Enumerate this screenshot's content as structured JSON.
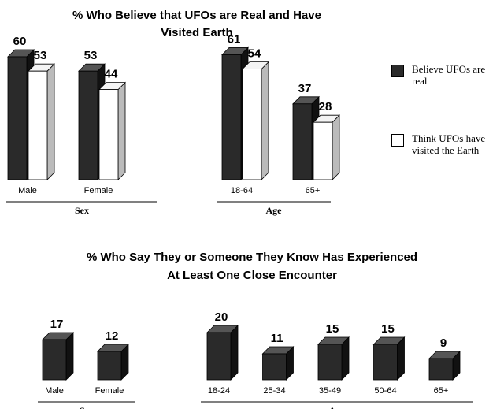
{
  "chart_data": [
    {
      "type": "bar",
      "title": [
        "% Who Believe that UFOs are Real and Have",
        "Visited Earth"
      ],
      "series": [
        {
          "name": "Believe UFOs are real",
          "color": "#2a2a2a"
        },
        {
          "name": "Think UFOs have visited the Earth",
          "color": "#ffffff"
        }
      ],
      "panels": [
        {
          "xlabel": "Sex",
          "categories": [
            "Male",
            "Female"
          ],
          "series": [
            {
              "values": [
                60,
                53
              ]
            },
            {
              "values": [
                53,
                44
              ]
            }
          ]
        },
        {
          "xlabel": "Age",
          "categories": [
            "18-64",
            "65+"
          ],
          "series": [
            {
              "values": [
                61,
                37
              ]
            },
            {
              "values": [
                54,
                28
              ]
            }
          ]
        }
      ]
    },
    {
      "type": "bar",
      "title": [
        "% Who Say They or Someone They Know Has Experienced",
        "At Least One Close Encounter"
      ],
      "series": [
        {
          "color": "#2a2a2a"
        }
      ],
      "panels": [
        {
          "xlabel": "Sex",
          "categories": [
            "Male",
            "Female"
          ],
          "series": [
            {
              "values": [
                17,
                12
              ]
            }
          ]
        },
        {
          "xlabel": "Age",
          "categories": [
            "18-24",
            "25-34",
            "35-49",
            "50-64",
            "65+"
          ],
          "series": [
            {
              "values": [
                20,
                11,
                15,
                15,
                9
              ]
            }
          ]
        }
      ]
    }
  ]
}
